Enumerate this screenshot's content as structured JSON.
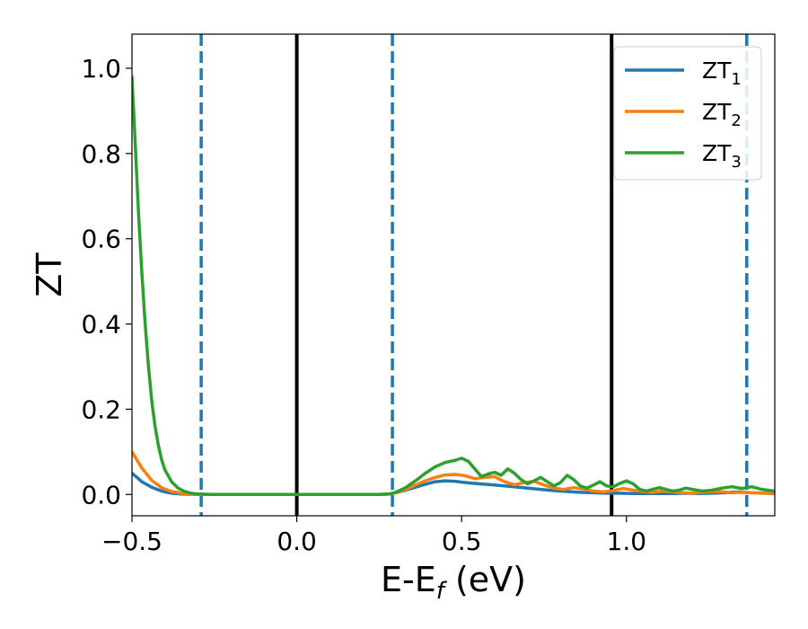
{
  "chart_data": {
    "type": "line",
    "xlabel_main": "E-E",
    "xlabel_sub": "f",
    "xlabel_unit": " (eV)",
    "ylabel": "ZT",
    "xlim": [
      -0.5,
      1.45
    ],
    "ylim": [
      -0.05,
      1.08
    ],
    "x_ticks": [
      -0.5,
      0.0,
      0.5,
      1.0
    ],
    "x_tick_labels": [
      "−0.5",
      "0.0",
      "0.5",
      "1.0"
    ],
    "y_ticks": [
      0.0,
      0.2,
      0.4,
      0.6,
      0.8,
      1.0
    ],
    "y_tick_labels": [
      "0.0",
      "0.2",
      "0.4",
      "0.6",
      "0.8",
      "1.0"
    ],
    "grid": false,
    "legend_position": "top-right",
    "series": [
      {
        "name": "ZT",
        "name_sub": "1",
        "color": "#1f77b4",
        "x": [
          -0.5,
          -0.47,
          -0.44,
          -0.41,
          -0.38,
          -0.35,
          -0.3,
          -0.25,
          -0.2,
          -0.1,
          0.0,
          0.1,
          0.2,
          0.25,
          0.28,
          0.3,
          0.33,
          0.36,
          0.39,
          0.42,
          0.45,
          0.48,
          0.51,
          0.54,
          0.57,
          0.6,
          0.63,
          0.66,
          0.7,
          0.74,
          0.78,
          0.82,
          0.86,
          0.9,
          0.94,
          0.98,
          1.02,
          1.06,
          1.1,
          1.14,
          1.18,
          1.22,
          1.26,
          1.3,
          1.34,
          1.38,
          1.42,
          1.45
        ],
        "y": [
          0.05,
          0.03,
          0.017,
          0.008,
          0.003,
          0.001,
          0,
          0,
          0,
          0,
          0,
          0,
          0,
          0,
          0.001,
          0.004,
          0.01,
          0.017,
          0.024,
          0.03,
          0.032,
          0.031,
          0.028,
          0.026,
          0.024,
          0.022,
          0.02,
          0.018,
          0.015,
          0.012,
          0.009,
          0.007,
          0.005,
          0.004,
          0.003,
          0.003,
          0.002,
          0.002,
          0.002,
          0.002,
          0.003,
          0.002,
          0.003,
          0.004,
          0.006,
          0.004,
          0.003,
          0.002
        ]
      },
      {
        "name": "ZT",
        "name_sub": "2",
        "color": "#ff7f0e",
        "x": [
          -0.5,
          -0.47,
          -0.44,
          -0.41,
          -0.38,
          -0.35,
          -0.32,
          -0.3,
          -0.25,
          -0.2,
          -0.1,
          0.0,
          0.1,
          0.2,
          0.25,
          0.28,
          0.3,
          0.33,
          0.36,
          0.39,
          0.42,
          0.45,
          0.48,
          0.51,
          0.54,
          0.57,
          0.6,
          0.63,
          0.66,
          0.69,
          0.72,
          0.75,
          0.78,
          0.81,
          0.84,
          0.87,
          0.9,
          0.93,
          0.96,
          0.99,
          1.02,
          1.05,
          1.08,
          1.11,
          1.14,
          1.17,
          1.2,
          1.23,
          1.26,
          1.29,
          1.32,
          1.35,
          1.38,
          1.41,
          1.45
        ],
        "y": [
          0.1,
          0.062,
          0.033,
          0.016,
          0.007,
          0.003,
          0.001,
          0,
          0,
          0,
          0,
          0,
          0,
          0,
          0,
          0.001,
          0.004,
          0.012,
          0.022,
          0.032,
          0.04,
          0.046,
          0.047,
          0.044,
          0.037,
          0.04,
          0.042,
          0.03,
          0.023,
          0.028,
          0.031,
          0.022,
          0.015,
          0.012,
          0.016,
          0.013,
          0.008,
          0.006,
          0.009,
          0.014,
          0.01,
          0.007,
          0.005,
          0.008,
          0.006,
          0.004,
          0.003,
          0.005,
          0.007,
          0.006,
          0.004,
          0.005,
          0.004,
          0.003,
          0.003
        ]
      },
      {
        "name": "ZT",
        "name_sub": "3",
        "color": "#2ca02c",
        "x": [
          -0.5,
          -0.49,
          -0.48,
          -0.47,
          -0.46,
          -0.45,
          -0.44,
          -0.43,
          -0.42,
          -0.41,
          -0.4,
          -0.38,
          -0.36,
          -0.34,
          -0.32,
          -0.3,
          -0.25,
          -0.2,
          -0.1,
          0.0,
          0.1,
          0.2,
          0.25,
          0.28,
          0.3,
          0.33,
          0.36,
          0.39,
          0.42,
          0.45,
          0.48,
          0.5,
          0.52,
          0.54,
          0.56,
          0.58,
          0.6,
          0.62,
          0.64,
          0.66,
          0.68,
          0.7,
          0.72,
          0.74,
          0.76,
          0.78,
          0.8,
          0.82,
          0.84,
          0.86,
          0.88,
          0.9,
          0.92,
          0.94,
          0.96,
          0.98,
          1.0,
          1.02,
          1.04,
          1.06,
          1.08,
          1.1,
          1.12,
          1.14,
          1.16,
          1.18,
          1.2,
          1.23,
          1.26,
          1.29,
          1.32,
          1.35,
          1.38,
          1.41,
          1.45
        ],
        "y": [
          0.98,
          0.82,
          0.66,
          0.52,
          0.4,
          0.3,
          0.22,
          0.16,
          0.115,
          0.082,
          0.058,
          0.03,
          0.015,
          0.007,
          0.003,
          0.001,
          0,
          0,
          0,
          0,
          0,
          0,
          0,
          0.001,
          0.005,
          0.016,
          0.032,
          0.05,
          0.065,
          0.075,
          0.08,
          0.085,
          0.078,
          0.06,
          0.042,
          0.048,
          0.052,
          0.045,
          0.06,
          0.05,
          0.035,
          0.025,
          0.032,
          0.04,
          0.03,
          0.02,
          0.028,
          0.045,
          0.035,
          0.02,
          0.015,
          0.022,
          0.03,
          0.02,
          0.018,
          0.026,
          0.032,
          0.025,
          0.012,
          0.008,
          0.012,
          0.016,
          0.012,
          0.008,
          0.01,
          0.015,
          0.012,
          0.008,
          0.01,
          0.015,
          0.018,
          0.014,
          0.018,
          0.012,
          0.008
        ]
      }
    ],
    "vlines": [
      {
        "x": -0.29,
        "color": "#1f77b4",
        "style": "dashed"
      },
      {
        "x": 0.0,
        "color": "#000000",
        "style": "solid"
      },
      {
        "x": 0.29,
        "color": "#1f77b4",
        "style": "dashed"
      },
      {
        "x": 0.955,
        "color": "#000000",
        "style": "solid"
      },
      {
        "x": 1.365,
        "color": "#1f77b4",
        "style": "dashed"
      }
    ]
  }
}
